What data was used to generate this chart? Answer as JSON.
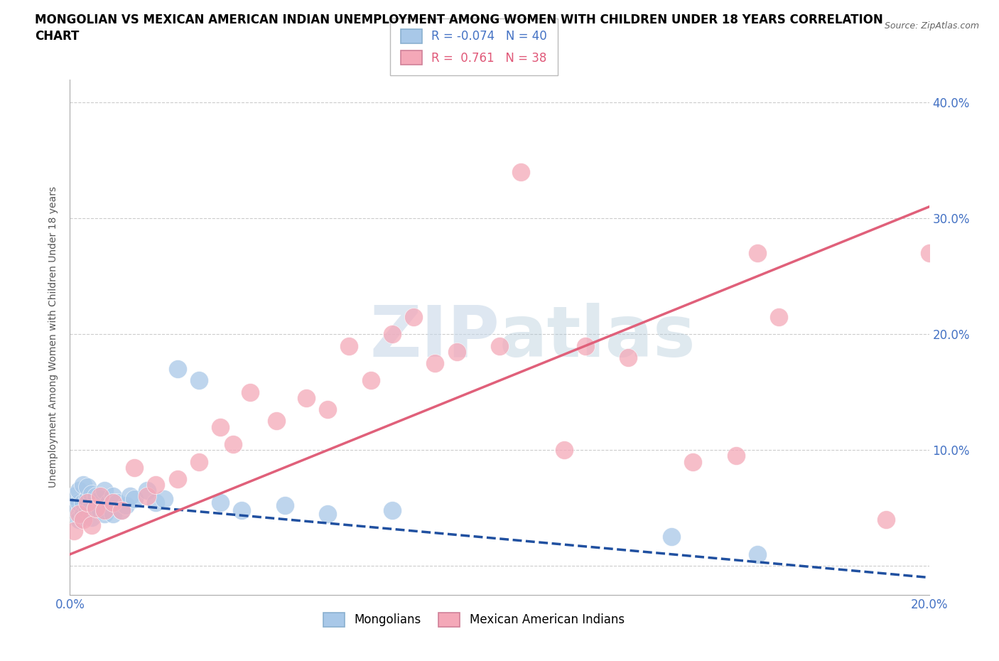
{
  "title_line1": "MONGOLIAN VS MEXICAN AMERICAN INDIAN UNEMPLOYMENT AMONG WOMEN WITH CHILDREN UNDER 18 YEARS CORRELATION",
  "title_line2": "CHART",
  "source": "Source: ZipAtlas.com",
  "ylabel": "Unemployment Among Women with Children Under 18 years",
  "xlim": [
    0.0,
    0.2
  ],
  "ylim": [
    -0.025,
    0.42
  ],
  "xticks": [
    0.0,
    0.02,
    0.04,
    0.06,
    0.08,
    0.1,
    0.12,
    0.14,
    0.16,
    0.18,
    0.2
  ],
  "ytick_positions": [
    0.0,
    0.1,
    0.2,
    0.3,
    0.4
  ],
  "ytick_labels": [
    "",
    "10.0%",
    "20.0%",
    "30.0%",
    "40.0%"
  ],
  "mongolian_R": -0.074,
  "mongolian_N": 40,
  "mexican_R": 0.761,
  "mexican_N": 38,
  "mongolian_color": "#a8c8e8",
  "mexican_color": "#f4a8b8",
  "mongolian_line_color": "#2050a0",
  "mexican_line_color": "#e0607a",
  "watermark_color": "#c8d8e8",
  "mongolian_x": [
    0.001,
    0.001,
    0.002,
    0.002,
    0.002,
    0.003,
    0.003,
    0.003,
    0.004,
    0.004,
    0.004,
    0.005,
    0.005,
    0.005,
    0.006,
    0.006,
    0.007,
    0.007,
    0.008,
    0.008,
    0.009,
    0.01,
    0.01,
    0.011,
    0.012,
    0.013,
    0.014,
    0.015,
    0.018,
    0.02,
    0.022,
    0.025,
    0.03,
    0.035,
    0.04,
    0.05,
    0.06,
    0.075,
    0.14,
    0.16
  ],
  "mongolian_y": [
    0.05,
    0.06,
    0.04,
    0.055,
    0.065,
    0.045,
    0.055,
    0.07,
    0.048,
    0.058,
    0.068,
    0.042,
    0.052,
    0.062,
    0.05,
    0.06,
    0.048,
    0.058,
    0.045,
    0.065,
    0.055,
    0.045,
    0.06,
    0.055,
    0.048,
    0.052,
    0.06,
    0.058,
    0.065,
    0.055,
    0.058,
    0.17,
    0.16,
    0.055,
    0.048,
    0.052,
    0.045,
    0.048,
    0.025,
    0.01
  ],
  "mexican_x": [
    0.001,
    0.002,
    0.003,
    0.004,
    0.005,
    0.006,
    0.007,
    0.008,
    0.01,
    0.012,
    0.015,
    0.018,
    0.02,
    0.025,
    0.03,
    0.035,
    0.038,
    0.042,
    0.048,
    0.055,
    0.06,
    0.065,
    0.07,
    0.075,
    0.08,
    0.085,
    0.09,
    0.1,
    0.105,
    0.115,
    0.12,
    0.13,
    0.145,
    0.155,
    0.16,
    0.165,
    0.19,
    0.2
  ],
  "mexican_y": [
    0.03,
    0.045,
    0.04,
    0.055,
    0.035,
    0.05,
    0.06,
    0.048,
    0.055,
    0.048,
    0.085,
    0.06,
    0.07,
    0.075,
    0.09,
    0.12,
    0.105,
    0.15,
    0.125,
    0.145,
    0.135,
    0.19,
    0.16,
    0.2,
    0.215,
    0.175,
    0.185,
    0.19,
    0.34,
    0.1,
    0.19,
    0.18,
    0.09,
    0.095,
    0.27,
    0.215,
    0.04,
    0.27
  ],
  "mongo_trend_x0": 0.0,
  "mongo_trend_y0": 0.057,
  "mongo_trend_x1": 0.2,
  "mongo_trend_y1": -0.01,
  "mex_trend_x0": 0.0,
  "mex_trend_y0": 0.01,
  "mex_trend_x1": 0.2,
  "mex_trend_y1": 0.31
}
